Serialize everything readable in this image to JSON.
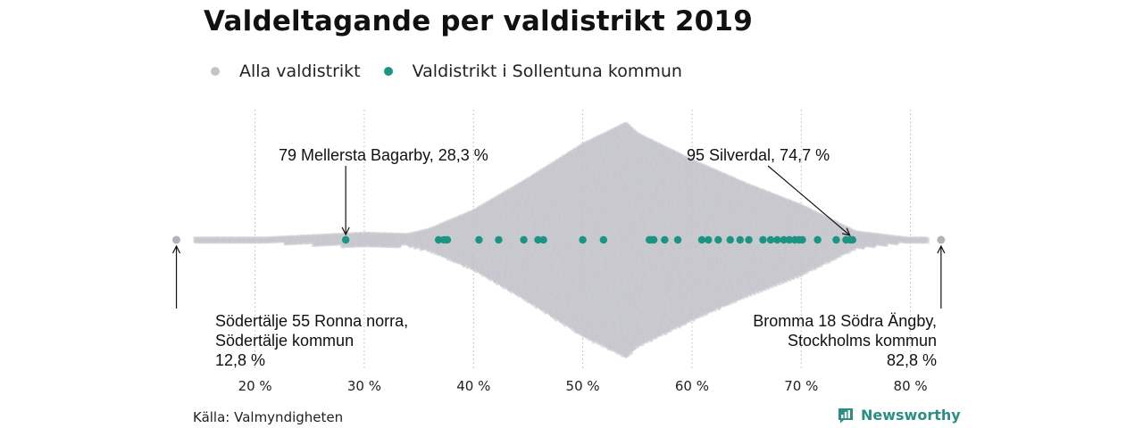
{
  "header": {
    "title": "Valdeltagande per valdistrikt 2019"
  },
  "legend": [
    {
      "label": "Alla valdistrikt",
      "color": "#c4c4cc"
    },
    {
      "label": "Valdistrikt i Sollentuna kommun",
      "color": "#1a9483"
    }
  ],
  "footer": {
    "source": "Källa: Valmyndigheten",
    "brand": "Newsworthy",
    "brand_color": "#2a8f82",
    "brand_icon": "bar-chart-speech-icon"
  },
  "chart_data": {
    "type": "scatter",
    "subtype": "beeswarm",
    "title": "Valdeltagande per valdistrikt 2019",
    "xlabel": "",
    "ylabel": "",
    "xlim": [
      13,
      86
    ],
    "x_ticks": [
      20,
      30,
      40,
      50,
      60,
      70,
      80
    ],
    "x_tick_labels": [
      "20 %",
      "30 %",
      "40 %",
      "50 %",
      "60 %",
      "70 %",
      "80 %"
    ],
    "grid": "vertical dotted",
    "legend_position": "top",
    "series": [
      {
        "name": "Alla valdistrikt",
        "color": "#c4c4cc",
        "distribution_profile": [
          [
            13,
            0
          ],
          [
            20,
            1
          ],
          [
            25,
            3
          ],
          [
            30,
            5
          ],
          [
            34,
            4
          ],
          [
            36,
            8
          ],
          [
            40,
            22
          ],
          [
            45,
            46
          ],
          [
            50,
            72
          ],
          [
            53,
            84
          ],
          [
            54,
            88
          ],
          [
            55,
            80
          ],
          [
            60,
            60
          ],
          [
            65,
            42
          ],
          [
            70,
            26
          ],
          [
            73,
            14
          ],
          [
            75,
            6
          ],
          [
            80,
            1
          ],
          [
            83,
            0
          ]
        ],
        "extremes": [
          12.8,
          82.8
        ]
      },
      {
        "name": "Valdistrikt i Sollentuna kommun",
        "color": "#1a9483",
        "values": [
          28.3,
          36.8,
          37.3,
          37.6,
          40.5,
          42.3,
          44.6,
          45.9,
          46.4,
          50.0,
          51.9,
          56.1,
          56.3,
          56.5,
          57.5,
          58.7,
          60.9,
          61.5,
          62.4,
          63.5,
          64.4,
          65.2,
          66.5,
          67.2,
          67.8,
          68.4,
          68.9,
          69.4,
          69.8,
          70.1,
          71.5,
          73.2,
          74.1,
          74.5,
          74.7
        ]
      }
    ],
    "annotations": [
      {
        "text": "79 Mellersta Bagarby, 28,3 %",
        "value": 28.3,
        "position": "above"
      },
      {
        "text": "95 Silverdal, 74,7 %",
        "value": 74.7,
        "position": "above"
      },
      {
        "lines": [
          "Södertälje 55 Ronna norra,",
          "Södertälje kommun",
          "12,8 %"
        ],
        "value": 12.8,
        "position": "below"
      },
      {
        "lines": [
          "Bromma 18 Södra Ängby,",
          "Stockholms kommun",
          "82,8 %"
        ],
        "value": 82.8,
        "position": "below"
      }
    ]
  }
}
